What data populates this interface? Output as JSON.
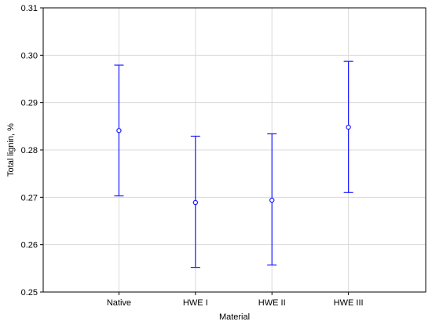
{
  "chart_data": {
    "type": "scatter",
    "title": "",
    "xlabel": "Material",
    "ylabel": "Total lignin, %",
    "categories": [
      "Native",
      "HWE I",
      "HWE II",
      "HWE III"
    ],
    "series": [
      {
        "mean": [
          0.2841,
          0.2689,
          0.2694,
          0.2848
        ],
        "lower": [
          0.2703,
          0.2552,
          0.2557,
          0.271
        ],
        "upper": [
          0.2979,
          0.2829,
          0.2834,
          0.2987
        ]
      }
    ],
    "ylim": [
      0.25,
      0.31
    ],
    "yticks": [
      "0.25",
      "0.26",
      "0.27",
      "0.28",
      "0.29",
      "0.30",
      "0.31"
    ],
    "grid": true,
    "colors": {
      "series": "#1a1aff",
      "grid": "#d9d9d9",
      "axis": "#000000"
    }
  }
}
